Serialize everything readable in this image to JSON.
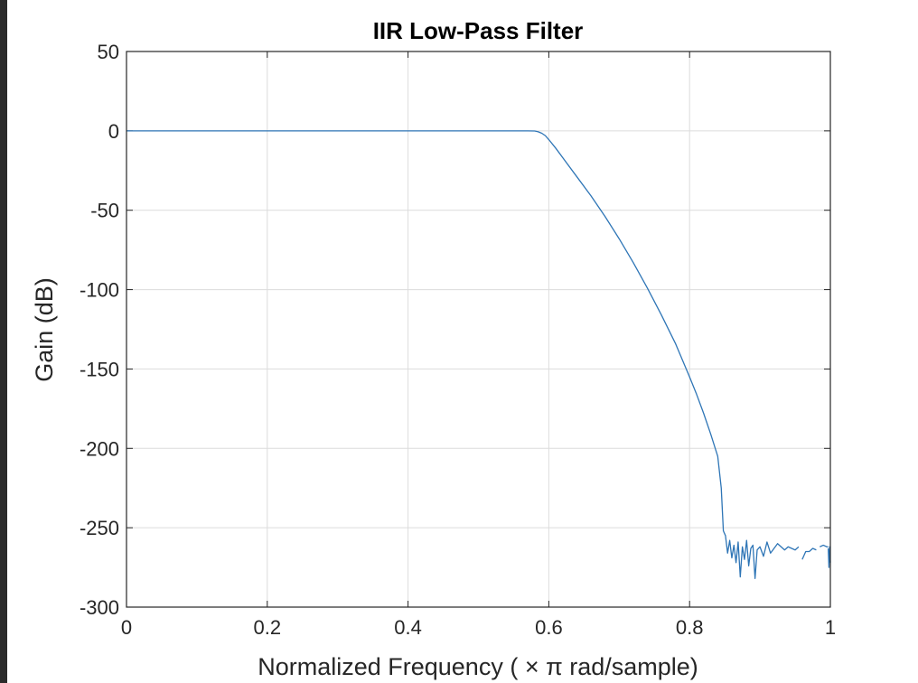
{
  "chart_data": {
    "type": "line",
    "title": "IIR Low-Pass Filter",
    "xlabel": "Normalized  Frequency  ( × π  rad/sample)",
    "ylabel": "Gain (dB)",
    "xlim": [
      0,
      1
    ],
    "ylim": [
      -300,
      50
    ],
    "xticks": [
      0,
      0.2,
      0.4,
      0.6,
      0.8,
      1
    ],
    "xtick_labels": [
      "0",
      "0.2",
      "0.4",
      "0.6",
      "0.8",
      "1"
    ],
    "yticks": [
      50,
      0,
      -50,
      -100,
      -150,
      -200,
      -250,
      -300
    ],
    "ytick_labels": [
      "50",
      "0",
      "-50",
      "-100",
      "-150",
      "-200",
      "-250",
      "-300"
    ],
    "grid": true,
    "line_color": "#2e75b6",
    "series": [
      {
        "x": [
          0,
          0.1,
          0.2,
          0.3,
          0.4,
          0.5,
          0.55,
          0.57,
          0.58,
          0.585,
          0.59,
          0.595,
          0.6,
          0.61,
          0.62,
          0.64,
          0.66,
          0.68,
          0.7,
          0.72,
          0.74,
          0.76,
          0.78,
          0.8,
          0.81,
          0.82,
          0.83,
          0.84,
          0.845,
          0.848,
          0.851,
          0.854,
          0.857,
          0.86,
          0.863,
          0.866,
          0.869,
          0.872,
          0.875,
          0.878,
          0.881,
          0.884,
          0.887,
          0.89,
          0.893,
          0.896,
          0.9,
          0.905,
          0.91,
          0.915,
          0.92,
          0.925,
          0.93,
          0.935,
          0.94,
          0.945,
          0.95,
          0.955
        ],
        "y": [
          0,
          0,
          0,
          0,
          0,
          0,
          0,
          0,
          -0.1,
          -0.6,
          -1.5,
          -3,
          -5.5,
          -11,
          -17,
          -29,
          -41,
          -54,
          -68,
          -83,
          -99,
          -116,
          -134,
          -155,
          -166,
          -178,
          -191,
          -205,
          -225,
          -252,
          -255,
          -266,
          -258,
          -269,
          -261,
          -272,
          -259,
          -281,
          -262,
          -270,
          -258,
          -274,
          -263,
          -261,
          -282,
          -264,
          -262,
          -268,
          -259,
          -266,
          -263,
          -260,
          -262,
          -264,
          -262,
          -263,
          -264,
          -262
        ]
      },
      {
        "x": [
          0.96,
          0.965,
          0.97,
          0.975,
          0.98
        ],
        "y": [
          -270,
          -265,
          -265,
          -263,
          -264
        ]
      },
      {
        "x": [
          0.985,
          0.99,
          0.995,
          0.997
        ],
        "y": [
          -262,
          -261,
          -262,
          -262
        ]
      },
      {
        "x": [
          0.997,
          0.998,
          0.999,
          1.0
        ],
        "y": [
          -263,
          -275,
          -262,
          -272
        ]
      }
    ]
  }
}
